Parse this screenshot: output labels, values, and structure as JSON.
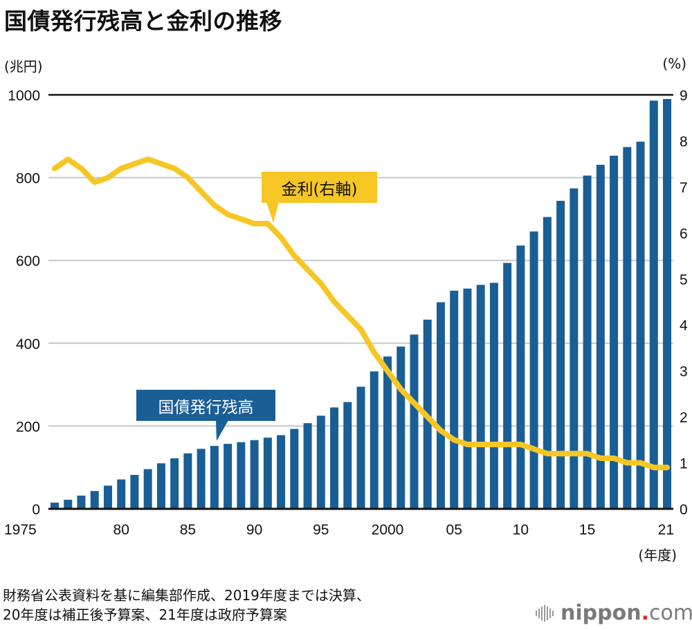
{
  "title": "国債発行残高と金利の推移",
  "left_unit": "(兆円)",
  "right_unit": "(%)",
  "x_unit": "(年度)",
  "callouts": {
    "rate": "金利(右軸)",
    "debt": "国債発行残高"
  },
  "footnote_line1": "財務省公表資料を基に編集部作成、2019年度までは決算、",
  "footnote_line2": "20年度は補正後予算案、21年度は政府予算案",
  "brand": {
    "name_bold": "nippon",
    "dot": ".",
    "name_light": "com"
  },
  "colors": {
    "bar": "#1a5e96",
    "line": "#f6c624",
    "grid": "#c8c8c8",
    "axis": "#111111"
  },
  "chart_data": {
    "type": "bar",
    "title": "国債発行残高と金利の推移",
    "xlabel": "(年度)",
    "ylabel": "(兆円)",
    "y2label": "(%)",
    "ylim": [
      0,
      1000
    ],
    "y2lim": [
      0,
      9
    ],
    "yticks": [
      0,
      200,
      400,
      600,
      800,
      1000
    ],
    "y2ticks": [
      0,
      1,
      2,
      3,
      4,
      5,
      6,
      7,
      8,
      9
    ],
    "grid": true,
    "xtick_labels": [
      {
        "year": 1975,
        "label": "1975"
      },
      {
        "year": 1980,
        "label": "80"
      },
      {
        "year": 1985,
        "label": "85"
      },
      {
        "year": 1990,
        "label": "90"
      },
      {
        "year": 1995,
        "label": "95"
      },
      {
        "year": 2000,
        "label": "2000"
      },
      {
        "year": 2005,
        "label": "05"
      },
      {
        "year": 2010,
        "label": "10"
      },
      {
        "year": 2015,
        "label": "15"
      },
      {
        "year": 2021,
        "label": "21"
      }
    ],
    "categories": [
      1975,
      1976,
      1977,
      1978,
      1979,
      1980,
      1981,
      1982,
      1983,
      1984,
      1985,
      1986,
      1987,
      1988,
      1989,
      1990,
      1991,
      1992,
      1993,
      1994,
      1995,
      1996,
      1997,
      1998,
      1999,
      2000,
      2001,
      2002,
      2003,
      2004,
      2005,
      2006,
      2007,
      2008,
      2009,
      2010,
      2011,
      2012,
      2013,
      2014,
      2015,
      2016,
      2017,
      2018,
      2019,
      2020,
      2021
    ],
    "series": [
      {
        "name": "国債発行残高",
        "type": "bar",
        "axis": "left",
        "values": [
          15,
          22,
          32,
          43,
          56,
          71,
          82,
          96,
          110,
          122,
          134,
          145,
          152,
          157,
          161,
          166,
          172,
          178,
          193,
          207,
          225,
          245,
          258,
          295,
          332,
          368,
          392,
          421,
          457,
          499,
          527,
          532,
          541,
          546,
          594,
          636,
          670,
          705,
          744,
          774,
          805,
          831,
          853,
          874,
          887,
          986,
          990
        ]
      },
      {
        "name": "金利(右軸)",
        "type": "line",
        "axis": "right",
        "values": [
          7.4,
          7.6,
          7.4,
          7.1,
          7.2,
          7.4,
          7.5,
          7.6,
          7.5,
          7.4,
          7.2,
          6.9,
          6.6,
          6.4,
          6.3,
          6.2,
          6.2,
          5.9,
          5.5,
          5.2,
          4.9,
          4.5,
          4.2,
          3.9,
          3.4,
          3.0,
          2.6,
          2.3,
          2.0,
          1.7,
          1.5,
          1.4,
          1.4,
          1.4,
          1.4,
          1.4,
          1.3,
          1.2,
          1.2,
          1.2,
          1.2,
          1.1,
          1.1,
          1.0,
          1.0,
          0.9,
          0.9
        ]
      }
    ]
  }
}
